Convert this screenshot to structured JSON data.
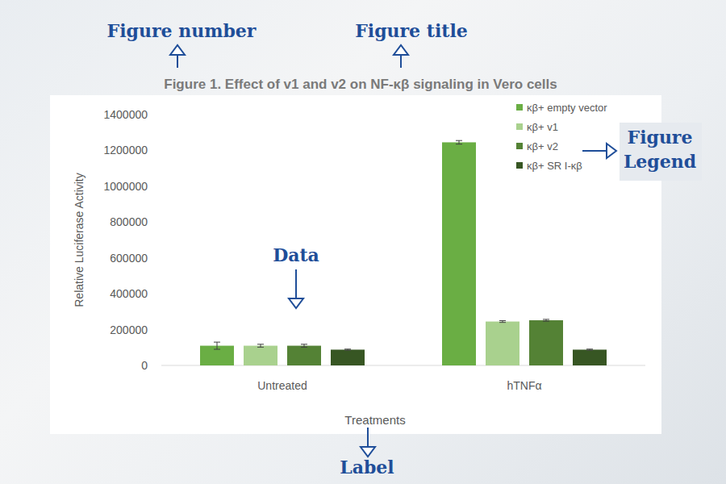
{
  "chart_data": {
    "type": "bar",
    "title": "Figure 1. Effect of v1 and v2 on NF-κβ signaling in Vero cells",
    "x_label": "Treatments",
    "y_label": "Relative Luciferase Activity",
    "categories": [
      "Untreated",
      "hTNFα"
    ],
    "series": [
      {
        "name": "κβ+ empty vector",
        "color": "#6aae44",
        "values": [
          110000,
          1245000
        ],
        "errors": [
          20000,
          10000
        ]
      },
      {
        "name": "κβ+ v1",
        "color": "#a9d18e",
        "values": [
          110000,
          245000
        ],
        "errors": [
          8000,
          5000
        ]
      },
      {
        "name": "κβ+ v2",
        "color": "#548235",
        "values": [
          110000,
          252000
        ],
        "errors": [
          8000,
          5000
        ]
      },
      {
        "name": "κβ+ SR I-κβ",
        "color": "#375623",
        "values": [
          88000,
          88000
        ],
        "errors": [
          3000,
          3000
        ]
      }
    ],
    "ylim": [
      0,
      1400000
    ],
    "yticks": [
      0,
      200000,
      400000,
      600000,
      800000,
      1000000,
      1200000,
      1400000
    ],
    "grid": false,
    "legend": "top-right",
    "annotations": [
      {
        "text": "Figure number"
      },
      {
        "text": "Figure title"
      },
      {
        "text": "Figure Legend"
      },
      {
        "text": "Data"
      },
      {
        "text": "Label"
      }
    ]
  }
}
